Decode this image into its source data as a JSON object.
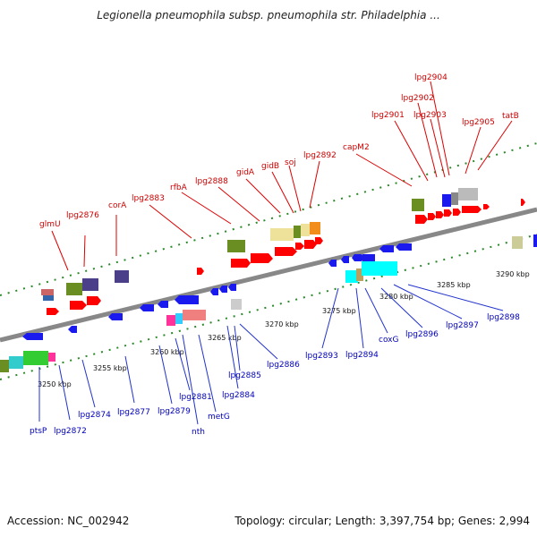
{
  "title": "Legionella pneumophila subsp. pneumophila str. Philadelphia ...",
  "accession": "Accession: NC_002942",
  "summary": "Topology: circular; Length: 3,397,754 bp; Genes: 2,994",
  "ticks": [
    "3250 kbp",
    "3255 kbp",
    "3260 kbp",
    "3265 kbp",
    "3270 kbp",
    "3275 kbp",
    "3280 kbp",
    "3285 kbp",
    "3290 kbp"
  ],
  "top_labels": [
    "glmU",
    "lpg2876",
    "corA",
    "lpg2883",
    "rfbA",
    "lpg2888",
    "gidA",
    "gidB",
    "soj",
    "lpg2892",
    "capM2",
    "lpg2901",
    "lpg2902",
    "lpg2903",
    "lpg2904",
    "lpg2905",
    "tatB"
  ],
  "bottom_labels": [
    "ptsP",
    "lpg2872",
    "lpg2874",
    "lpg2877",
    "lpg2879",
    "lpg2881",
    "nth",
    "metG",
    "lpg2884",
    "lpg2885",
    "lpg2886",
    "lpg2893",
    "lpg2894",
    "coxG",
    "lpg2896",
    "lpg2897",
    "lpg2898"
  ],
  "colors": {
    "forward_gene": "#ff0000",
    "reverse_gene": "#1a1aee",
    "backbone": "#888888",
    "top_label": "#cc0000",
    "bottom_label": "#0000bb",
    "tick_dots": "#2a8a2a"
  }
}
